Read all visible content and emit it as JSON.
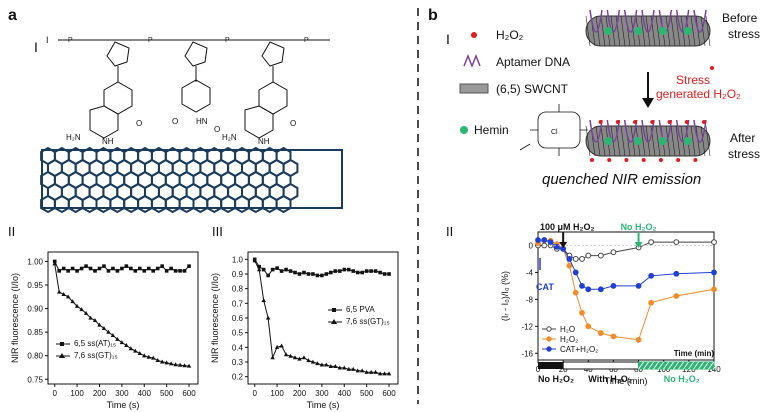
{
  "panel_a": {
    "label": "a",
    "sub_i": "I",
    "sub_ii": "II",
    "sub_iii": "III",
    "dna_bases": [
      "H₂N",
      "NH",
      "N",
      "O",
      "HN",
      "O",
      "H₂N",
      "NH",
      "N",
      "O"
    ]
  },
  "panel_b": {
    "label": "b",
    "sub_i": "I",
    "sub_ii": "II",
    "legend": {
      "h2o2": "H₂O₂",
      "aptamer": "Aptamer DNA",
      "swcnt": "(6,5) SWCNT",
      "hemin": "Hemin"
    },
    "before": "Before\nstress",
    "after": "After\nstress",
    "stress": "Stress\ngenerated H₂O₂",
    "quenched": "quenched NIR emission",
    "colors": {
      "red": "#e41a1c",
      "green": "#2bb673",
      "purple": "#7b3fa0"
    }
  },
  "chart_data": [
    {
      "type": "line",
      "panel": "a-II",
      "xlabel": "Time (s)",
      "ylabel": "NIR fluorescence (I/Io)",
      "xlim": [
        -30,
        640
      ],
      "ylim": [
        0.74,
        1.02
      ],
      "xticks": [
        0,
        100,
        200,
        300,
        400,
        500,
        600
      ],
      "yticks": [
        0.75,
        0.8,
        0.85,
        0.9,
        0.95,
        1.0
      ],
      "legend_position": "bottom-left",
      "series": [
        {
          "name": "6,5 ss(AT)₁₅",
          "marker": "square",
          "x": [
            0,
            20,
            40,
            60,
            80,
            100,
            120,
            140,
            160,
            180,
            200,
            220,
            240,
            260,
            280,
            300,
            320,
            340,
            360,
            380,
            400,
            420,
            440,
            460,
            480,
            500,
            520,
            540,
            560,
            580,
            600
          ],
          "y": [
            1.0,
            0.98,
            0.985,
            0.98,
            0.985,
            0.98,
            0.985,
            0.99,
            0.985,
            0.98,
            0.985,
            0.99,
            0.98,
            0.985,
            0.98,
            0.985,
            0.99,
            0.985,
            0.98,
            0.985,
            0.98,
            0.985,
            0.98,
            0.985,
            0.99,
            0.98,
            0.985,
            0.98,
            0.98,
            0.98,
            0.99
          ]
        },
        {
          "name": "7,6 ss(GT)₁₅",
          "marker": "triangle",
          "x": [
            0,
            20,
            40,
            60,
            80,
            100,
            120,
            140,
            160,
            180,
            200,
            220,
            240,
            260,
            280,
            300,
            320,
            340,
            360,
            380,
            400,
            420,
            440,
            460,
            480,
            500,
            520,
            540,
            560,
            580,
            600
          ],
          "y": [
            0.995,
            0.935,
            0.93,
            0.925,
            0.915,
            0.905,
            0.898,
            0.89,
            0.88,
            0.875,
            0.865,
            0.858,
            0.85,
            0.843,
            0.835,
            0.828,
            0.822,
            0.815,
            0.81,
            0.805,
            0.8,
            0.797,
            0.795,
            0.79,
            0.787,
            0.785,
            0.783,
            0.781,
            0.78,
            0.779,
            0.778
          ]
        }
      ]
    },
    {
      "type": "line",
      "panel": "a-III",
      "xlabel": "Time (s)",
      "ylabel": "NIR fluorescence (I/Io)",
      "xlim": [
        -30,
        640
      ],
      "ylim": [
        0.15,
        1.05
      ],
      "xticks": [
        0,
        100,
        200,
        300,
        400,
        500,
        600
      ],
      "yticks": [
        0.2,
        0.3,
        0.4,
        0.5,
        0.6,
        0.7,
        0.8,
        0.9,
        1.0
      ],
      "legend_position": "right",
      "series": [
        {
          "name": "6,5 PVA",
          "marker": "square",
          "x": [
            0,
            20,
            40,
            60,
            80,
            100,
            120,
            140,
            160,
            180,
            200,
            220,
            240,
            260,
            280,
            300,
            320,
            340,
            360,
            380,
            400,
            420,
            440,
            460,
            480,
            500,
            520,
            540,
            560,
            580,
            600
          ],
          "y": [
            1.0,
            0.95,
            0.93,
            0.89,
            0.93,
            0.94,
            0.92,
            0.93,
            0.92,
            0.91,
            0.9,
            0.91,
            0.9,
            0.9,
            0.89,
            0.89,
            0.9,
            0.91,
            0.92,
            0.92,
            0.93,
            0.93,
            0.92,
            0.91,
            0.91,
            0.92,
            0.92,
            0.92,
            0.91,
            0.9,
            0.9
          ]
        },
        {
          "name": "7,6 ss(GT)₁₅",
          "marker": "triangle",
          "x": [
            0,
            20,
            40,
            60,
            80,
            100,
            120,
            140,
            160,
            180,
            200,
            220,
            240,
            260,
            280,
            300,
            320,
            340,
            360,
            380,
            400,
            420,
            440,
            460,
            480,
            500,
            520,
            540,
            560,
            580,
            600
          ],
          "y": [
            0.99,
            0.93,
            0.72,
            0.6,
            0.33,
            0.4,
            0.41,
            0.35,
            0.34,
            0.33,
            0.32,
            0.33,
            0.31,
            0.3,
            0.29,
            0.28,
            0.28,
            0.27,
            0.27,
            0.26,
            0.26,
            0.25,
            0.25,
            0.24,
            0.24,
            0.23,
            0.23,
            0.23,
            0.22,
            0.22,
            0.22
          ]
        }
      ]
    },
    {
      "type": "line",
      "panel": "b-II",
      "xlabel": "Time (min)",
      "ylabel": "(Iᵣ - I₀)/I₀ (%)",
      "xlim": [
        0,
        140
      ],
      "ylim": [
        -17,
        2
      ],
      "xticks": [
        0,
        20,
        40,
        60,
        80,
        100,
        120,
        140
      ],
      "yticks": [
        0,
        -4,
        -8,
        -12,
        -16
      ],
      "legend_position": "bottom-left",
      "annotations": [
        "100 μM H₂O₂",
        "No H₂O₂",
        "CAT",
        "Time (min)"
      ],
      "bars": {
        "no_h2o2_1": "No H₂O₂",
        "with_h2o2": "With H₂O₂",
        "no_h2o2_2": "No H₂O₂"
      },
      "series": [
        {
          "name": "H₂O",
          "color": "#444444",
          "x": [
            0,
            5,
            10,
            15,
            20,
            25,
            30,
            35,
            40,
            50,
            60,
            80,
            90,
            110,
            140
          ],
          "y": [
            0,
            0,
            0,
            -0.5,
            -0.5,
            -1.5,
            -2,
            -2,
            -1.5,
            -1.5,
            -1,
            -0.3,
            0.5,
            0.5,
            0.5
          ]
        },
        {
          "name": "H₂O₂",
          "color": "#f28c28",
          "x": [
            0,
            5,
            10,
            15,
            20,
            25,
            30,
            35,
            40,
            50,
            60,
            80,
            90,
            110,
            140
          ],
          "y": [
            0.3,
            0.8,
            0.7,
            0.2,
            -0.5,
            -3,
            -7,
            -10,
            -12,
            -13,
            -13.5,
            -14,
            -8.5,
            -7.5,
            -6.5
          ]
        },
        {
          "name": "CAT+H₂O₂",
          "color": "#1f3fd6",
          "x": [
            0,
            5,
            10,
            15,
            20,
            25,
            30,
            35,
            40,
            50,
            60,
            80,
            90,
            110,
            140
          ],
          "y": [
            0.8,
            0.8,
            0.5,
            -0.2,
            -0.5,
            -2,
            -4,
            -6,
            -6.5,
            -6.5,
            -6,
            -6,
            -4.5,
            -4.2,
            -4
          ]
        }
      ]
    }
  ]
}
